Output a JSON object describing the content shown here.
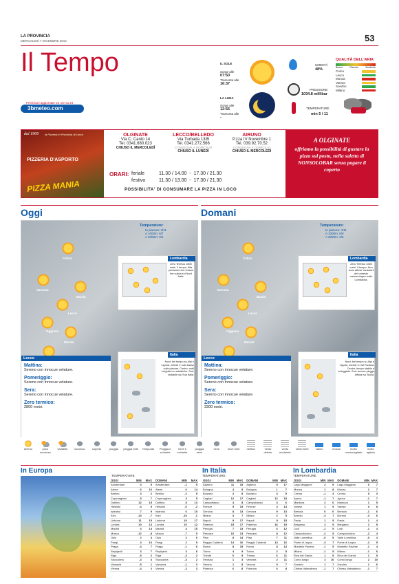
{
  "masthead": {
    "paper": "LA PROVINCIA",
    "date": "MERCOLEDÌ 7 DICEMBRE 2016",
    "page": "53"
  },
  "title": "Il Tempo",
  "provider": {
    "note": "Previsioni aggiornate 24 ore su 24",
    "brand": "3bmeteo.com"
  },
  "sun": {
    "label": "IL SOLE",
    "rise_label": "Sorge alle",
    "rise": "07:50",
    "set_label": "Tramonta alle",
    "set": "16:37"
  },
  "moon": {
    "label": "LA LUNA",
    "rise_label": "Sorge alle",
    "rise": "12:55",
    "set_label": "Tramonta alle",
    "set": "-"
  },
  "humidity": {
    "label": "UMIDITÀ",
    "value": "48%"
  },
  "pressure": {
    "label": "PRESSIONE",
    "value": "1034.8 millibar"
  },
  "temperature": {
    "label": "TEMPERATURE",
    "value": "min 5 / 11"
  },
  "air_quality": {
    "title": "QUALITÀ DELL'ARIA",
    "levels": [
      "Buono",
      "Discreto",
      "Scadente"
    ],
    "cities": [
      "Como",
      "Lecco",
      "Monza",
      "Varese",
      "Sondrio",
      "Milano"
    ]
  },
  "ad": {
    "since": "dal 1969",
    "tagline": "la Pizzeria in Provincia di Lecco",
    "name": "PIZZERIA D'ASPORTO",
    "brand": "PIZZA MANIA",
    "shops": [
      {
        "city": "OLGINATE",
        "street": "Via C. Cantù 14",
        "tel": "Tel. 0341.680.023",
        "closed": "CHIUSO IL MERCOLEDÌ"
      },
      {
        "city": "LECCO/BELLEDO",
        "street": "Via Turbada 13/B",
        "tel": "Tel. 0341.272.566",
        "delivery": "CONSEGNA A DOMICILIO",
        "closed": "CHIUSO IL LUNEDÌ"
      },
      {
        "city": "AIRUNO",
        "street": "P.zza IV Novembre 1",
        "tel": "Tel. 039.92.70.52",
        "delivery": "CONSEGNA A DOMICILIO",
        "closed": "CHIUSO IL MERCOLEDÌ"
      }
    ],
    "hours_label": "ORARI:",
    "row1_label": "feriale",
    "row1": "11.30 / 14.00  -  17.30 / 21.30",
    "row2_label": "festivo",
    "row2": "11.30 / 13.00  -  17.30 / 21.30",
    "footer": "POSSIBILITA' DI CONSUMARE LA PIZZA IN LOCO",
    "promo_title": "A OLGINATE",
    "promo_text": "offriamo la possibilità di gustare la pizza sul posto, nella saletta di NONSOLOBAR senza pagare il coperto"
  },
  "oggi": {
    "title": "Oggi",
    "temps_title": "Temperature:",
    "temps": [
      "In pianura: 3/11",
      "A 1000m: 6/7",
      "A 2000m: 0/4"
    ],
    "towns": [
      "Colico",
      "Varenna",
      "Barzio",
      "Lecco",
      "Oggiono",
      "Merate"
    ],
    "lombardia_title": "Lombardia",
    "lombardia_text": "Zero Termico 2800 metri. Il tempo: Alta pressione che rimane ben salda sul Nord Italia.",
    "italia_title": "Italia",
    "italia_text": "Nord: bel tempo su Alpi e Liguria, nebbie e nubi basse sulle pianure. Centro: nubi irregolari su adriatiche. Sud: instabile sul Sud Italia.",
    "lecco_title": "Lecco",
    "mattina_label": "Mattina:",
    "mattina": "Sereno con innocue velature.",
    "pomeriggio_label": "Pomeriggio:",
    "pomeriggio": "Sereno con innocue velature.",
    "sera_label": "Sera:",
    "sera": "Sereno con innocue velature.",
    "zero_label": "Zero termico:",
    "zero": "2800 metri."
  },
  "domani": {
    "title": "Domani",
    "temps_title": "Temperature:",
    "temps": [
      "In pianura: 4/11",
      "A 1000m: 6/9",
      "A 2000m: 3/5"
    ],
    "towns": [
      "Colico",
      "Varenna",
      "Barzio",
      "Lecco",
      "Oggiono",
      "Merate"
    ],
    "lombardia_title": "Lombardia",
    "lombardia_text": "Zero Termico 3300 metri. Il tempo: Non sono attese variazioni del contesto meteorologico sulla Lombardia.",
    "italia_title": "Italia",
    "italia_text": "Nord: bel tempo su Alpi e Liguria, nebbie in Val Padana. Centro: tempo stabile e soleggiato. Sud: ancora piogge diffuse su Sicilia.",
    "lecco_title": "Lecco",
    "mattina_label": "Mattina:",
    "mattina": "Sereno con innocue velature.",
    "pomeriggio_label": "Pomeriggio:",
    "pomeriggio": "Sereno con innocue velature.",
    "sera_label": "Sera:",
    "sera": "Sereno con innocue velature.",
    "zero_label": "Zero termico:",
    "zero": "3300 metri."
  },
  "legend": [
    "sereno",
    "poco nuvoloso",
    "variabile",
    "nuvoloso",
    "coperto",
    "pioggia",
    "pioggia forte",
    "Temporali",
    "Pioggia e schiarite",
    "neve e schiarite",
    "pioggia neve",
    "neve",
    "neve forte",
    "nebbia",
    "vento debole",
    "vento moderato",
    "vento forte",
    "calmo",
    "mosso",
    "molto mosso/agitato",
    "molto agitato"
  ],
  "europa": {
    "title": "In Europa",
    "temps_label": "TEMPERATURE",
    "oggi_label": "OGGI",
    "domani_label": "DOMANI",
    "min_label": "MIN",
    "max_label": "MAX",
    "rows": [
      [
        "Amsterdam",
        "3",
        "9",
        "-1",
        "5"
      ],
      [
        "Atene",
        "6",
        "16",
        "6",
        "14"
      ],
      [
        "Berlino",
        "3",
        "2",
        "-2",
        "5"
      ],
      [
        "Copenaghen",
        "5",
        "7",
        "3",
        "5"
      ],
      [
        "Dublino",
        "12",
        "15",
        "8",
        "13"
      ],
      [
        "Helsinki",
        "-4",
        "5",
        "-6",
        "-2"
      ],
      [
        "Istanbul",
        "7",
        "9",
        "6",
        "10"
      ],
      [
        "Kiev",
        "-13",
        "-7",
        "-10",
        "-1"
      ],
      [
        "Lisbona",
        "11",
        "15",
        "10",
        "17"
      ],
      [
        "Londra",
        "10",
        "13",
        "10",
        "12"
      ],
      [
        "Madrid",
        "4",
        "14",
        "4",
        "15"
      ],
      [
        "Mosca",
        "-12",
        "-8",
        "-7",
        "0"
      ],
      [
        "Oslo",
        "2",
        "4",
        "2",
        "6"
      ],
      [
        "Parigi",
        "4",
        "10",
        "2",
        "9"
      ],
      [
        "Praga",
        "-4",
        "7",
        "-1",
        "6"
      ],
      [
        "Reykjavík",
        "3",
        "7",
        "3",
        "6"
      ],
      [
        "Riga",
        "-5",
        "2",
        "-3",
        "2"
      ],
      [
        "Stoccolma",
        "-3",
        "3",
        "-3",
        "2"
      ],
      [
        "Varsavia",
        "-5",
        "1",
        "-1",
        "3"
      ],
      [
        "Vienna",
        "-4",
        "2",
        "-2",
        "3"
      ]
    ]
  },
  "italia": {
    "title": "In Italia",
    "temps_label": "TEMPERATURE",
    "oggi_label": "OGGI",
    "domani_label": "DOMANI",
    "min_label": "MIN",
    "max_label": "MAX",
    "rows": [
      [
        "Alghero",
        "11",
        "15",
        "9",
        "17"
      ],
      [
        "Bologna",
        "4",
        "8",
        "1",
        "7"
      ],
      [
        "Bolzano",
        "2",
        "8",
        "3",
        "9"
      ],
      [
        "Cagliari",
        "12",
        "17",
        "12",
        "15"
      ],
      [
        "Campobasso",
        "4",
        "8",
        "3",
        "6"
      ],
      [
        "Firenze",
        "5",
        "15",
        "4",
        "14"
      ],
      [
        "Genova",
        "8",
        "13",
        "9",
        "13"
      ],
      [
        "Milano",
        "3",
        "7",
        "2",
        "5"
      ],
      [
        "Napoli",
        "9",
        "17",
        "9",
        "15"
      ],
      [
        "Palermo",
        "15",
        "17",
        "16",
        "19"
      ],
      [
        "Perugia",
        "7",
        "13",
        "6",
        "12"
      ],
      [
        "Pescara",
        "10",
        "13",
        "8",
        "12"
      ],
      [
        "Pisa",
        "8",
        "14",
        "7",
        "11"
      ],
      [
        "Reggio Calabria",
        "14",
        "16",
        "13",
        "16"
      ],
      [
        "Roma",
        "8",
        "15",
        "8",
        "13"
      ],
      [
        "Torino",
        "4",
        "9",
        "2",
        "8"
      ],
      [
        "Trieste",
        "6",
        "9",
        "6",
        "11"
      ],
      [
        "Venezia",
        "1",
        "3",
        "2",
        "11"
      ],
      [
        "Verona",
        "1",
        "8",
        "0",
        "7"
      ],
      [
        "Potenza",
        "6",
        "8",
        "6",
        "8"
      ]
    ]
  },
  "lombardia": {
    "title": "In Lombardia",
    "temps_label": "TEMPERATURE",
    "oggi_label": "OGGI",
    "domani_label": "DOMANI",
    "min_label": "MIN",
    "max_label": "MAX",
    "rows": [
      [
        "Lago Maggiore",
        "2",
        "9",
        "0",
        "7"
      ],
      [
        "Monza",
        "1",
        "8",
        "1",
        "7"
      ],
      [
        "Crema",
        "-1",
        "4",
        "0",
        "3"
      ],
      [
        "Aprica",
        "-1",
        "7",
        "-1",
        "7"
      ],
      [
        "Mantova",
        "2",
        "6",
        "1",
        "5"
      ],
      [
        "Varese",
        "1",
        "9",
        "0",
        "8"
      ],
      [
        "Brescia",
        "0",
        "6",
        "-1",
        "6"
      ],
      [
        "Bormio",
        "-3",
        "7",
        "-3",
        "6"
      ],
      [
        "Pavia",
        "1",
        "5",
        "1",
        "4"
      ],
      [
        "Bergamo",
        "2",
        "9",
        "2",
        "9"
      ],
      [
        "Lodi",
        "-1",
        "5",
        "-1",
        "4"
      ],
      [
        "Campodolcino",
        "-2",
        "5",
        "-2",
        "4"
      ],
      [
        "Valle Lomellina",
        "-0",
        "5",
        "-0",
        "4"
      ],
      [
        "Ponte di Legno",
        "-3",
        "7",
        "-2",
        "5"
      ],
      [
        "Montello Pavese",
        "-1",
        "5",
        "-1",
        "4"
      ],
      [
        "Milano",
        "-1",
        "5",
        "-1",
        "6"
      ],
      [
        "Riva del Garda",
        "1",
        "9",
        "1",
        "9"
      ],
      [
        "Como lungo",
        "2",
        "10",
        "2",
        "10"
      ],
      [
        "Sondrio",
        "1",
        "7",
        "1",
        "6"
      ],
      [
        "Chiesa Valmalenco",
        "-1",
        "7",
        "-1",
        "7"
      ]
    ]
  },
  "colors": {
    "accent": "#c8102e",
    "sky": "#0f5aa8"
  }
}
